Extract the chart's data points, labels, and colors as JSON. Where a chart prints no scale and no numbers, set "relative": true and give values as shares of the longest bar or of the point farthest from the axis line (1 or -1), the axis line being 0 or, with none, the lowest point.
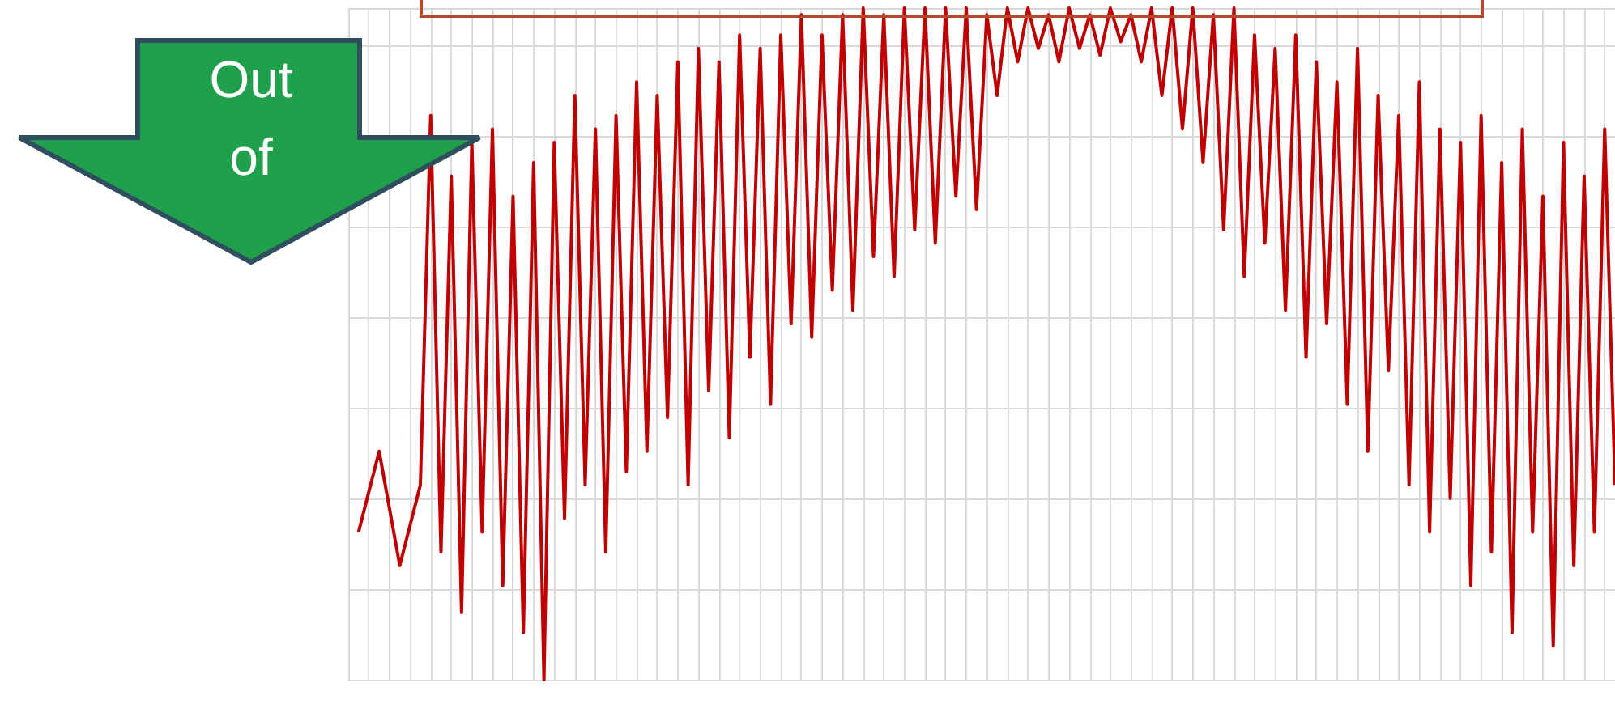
{
  "chart_data": {
    "type": "line",
    "relative": true,
    "grid": true,
    "categories": [
      null,
      null,
      null,
      null,
      null,
      null,
      null,
      null,
      null,
      null,
      null,
      null,
      null,
      null,
      null,
      null,
      null,
      null,
      null,
      null,
      null,
      null,
      null,
      null,
      null,
      null,
      null,
      null,
      null,
      null,
      null,
      null,
      null,
      null,
      null,
      null,
      null,
      null,
      null,
      null,
      null,
      null,
      null,
      null,
      null,
      null,
      null,
      null,
      null,
      null,
      null,
      null,
      null,
      null,
      null,
      null,
      null,
      null,
      null,
      null,
      null,
      null,
      null,
      null,
      null,
      null,
      null,
      null,
      null,
      null,
      null,
      null,
      null,
      null,
      null,
      null,
      null,
      null,
      null,
      null,
      null,
      null,
      null,
      null,
      null,
      null,
      null,
      null,
      null,
      null,
      null,
      null,
      null,
      null,
      null,
      null,
      null,
      null,
      null,
      null,
      null,
      null,
      null,
      null,
      null,
      null,
      null,
      null,
      null,
      null,
      null,
      null,
      null,
      null,
      null,
      null,
      null,
      null,
      null,
      null,
      null,
      null,
      null,
      null
    ],
    "series": [
      {
        "color": "#c00000",
        "values": [
          null,
          0.22,
          null,
          0.34,
          null,
          0.17,
          null,
          0.29,
          0.84,
          0.19,
          0.75,
          0.1,
          0.8,
          0.22,
          0.82,
          0.14,
          0.72,
          0.07,
          0.77,
          0,
          0.8,
          0.24,
          0.87,
          0.29,
          0.82,
          0.19,
          0.84,
          0.31,
          0.89,
          0.34,
          0.87,
          0.39,
          0.92,
          0.29,
          0.94,
          0.43,
          0.92,
          0.36,
          0.96,
          0.48,
          0.94,
          0.41,
          0.96,
          0.53,
          0.99,
          0.51,
          0.96,
          0.58,
          0.99,
          0.55,
          1,
          0.63,
          0.99,
          0.6,
          1,
          0.67,
          1,
          0.65,
          1,
          0.72,
          1,
          0.7,
          0.99,
          0.87,
          1,
          0.92,
          1,
          0.94,
          0.99,
          0.92,
          1,
          0.94,
          0.99,
          0.93,
          1,
          0.95,
          0.99,
          0.92,
          1,
          0.87,
          1,
          0.82,
          1,
          0.77,
          0.99,
          0.67,
          1,
          0.6,
          0.96,
          0.65,
          0.94,
          0.55,
          0.96,
          0.48,
          0.92,
          0.53,
          0.89,
          0.41,
          0.94,
          0.34,
          0.87,
          0.46,
          0.84,
          0.29,
          0.89,
          0.22,
          0.82,
          0.27,
          0.8,
          0.14,
          0.84,
          0.19,
          0.77,
          0.07,
          0.82,
          0.22,
          0.72,
          0.05,
          0.8,
          0.17,
          0.75,
          0.22,
          0.82,
          0.29
        ]
      }
    ],
    "annotations": [
      "Out of"
    ]
  }
}
